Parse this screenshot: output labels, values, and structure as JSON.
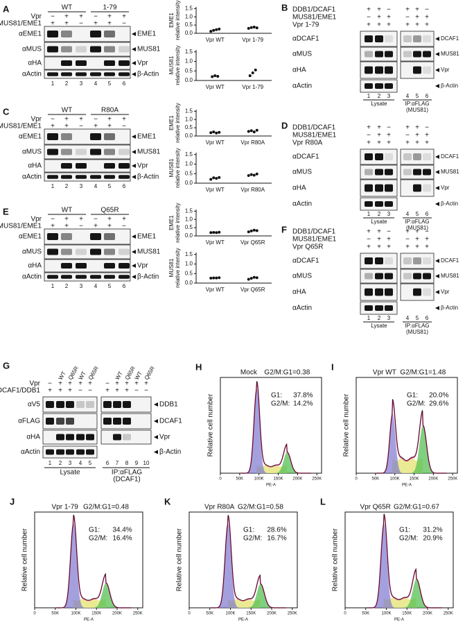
{
  "blot_panels": [
    {
      "letter": "A",
      "groups": [
        "WT",
        "1-79"
      ],
      "rows": [
        {
          "label": "Vpr",
          "signs": [
            "−",
            "+",
            "+",
            "−",
            "+",
            "+"
          ]
        },
        {
          "label": "MUS81/EME1",
          "signs": [
            "+",
            "+",
            "−",
            "+",
            "+",
            "−"
          ]
        }
      ],
      "blots": [
        {
          "antibody": "αEME1",
          "band": "EME1"
        },
        {
          "antibody": "αMUS",
          "band": "MUS81"
        },
        {
          "antibody": "αHA",
          "band": "Vpr"
        },
        {
          "antibody": "αActin",
          "band": "β-Actin"
        }
      ],
      "lanes": [
        1,
        2,
        3,
        4,
        5,
        6
      ]
    },
    {
      "letter": "C",
      "groups": [
        "WT",
        "R80A"
      ],
      "rows": [
        {
          "label": "Vpr",
          "signs": [
            "−",
            "+",
            "+",
            "−",
            "+",
            "+"
          ]
        },
        {
          "label": "MUS81/EME1",
          "signs": [
            "+",
            "+",
            "−",
            "+",
            "+",
            "−"
          ]
        }
      ],
      "blots": [
        {
          "antibody": "αEME1",
          "band": "EME1"
        },
        {
          "antibody": "αMUS",
          "band": "MUS81"
        },
        {
          "antibody": "αHA",
          "band": "Vpr"
        },
        {
          "antibody": "αActin",
          "band": "β-Actin"
        }
      ],
      "lanes": [
        1,
        2,
        3,
        4,
        5,
        6
      ]
    },
    {
      "letter": "E",
      "groups": [
        "WT",
        "Q65R"
      ],
      "rows": [
        {
          "label": "Vpr",
          "signs": [
            "−",
            "+",
            "+",
            "−",
            "+",
            "+"
          ]
        },
        {
          "label": "MUS81/EME1",
          "signs": [
            "+",
            "+",
            "−",
            "+",
            "+",
            "−"
          ]
        }
      ],
      "blots": [
        {
          "antibody": "αEME1",
          "band": "EME1"
        },
        {
          "antibody": "αMUS",
          "band": "MUS81"
        },
        {
          "antibody": "αHA",
          "band": "Vpr"
        },
        {
          "antibody": "αActin",
          "band": "β-Actin"
        }
      ],
      "lanes": [
        1,
        2,
        3,
        4,
        5,
        6
      ]
    }
  ],
  "ip_panels": [
    {
      "letter": "B",
      "rows": [
        {
          "label": "DDB1/DCAF1",
          "signs": [
            "+",
            "+",
            "−",
            "+",
            "+",
            "−"
          ]
        },
        {
          "label": "MUS81/EME1",
          "signs": [
            "−",
            "+",
            "+",
            "−",
            "+",
            "+"
          ]
        },
        {
          "label": "Vpr 1-79",
          "signs": [
            "+",
            "+",
            "+",
            "+",
            "+",
            "+"
          ]
        }
      ],
      "blots": [
        {
          "antibody": "αDCAF1",
          "band": "DCAF1"
        },
        {
          "antibody": "αMUS",
          "band": "MUS81"
        },
        {
          "antibody": "αHA",
          "band": "Vpr"
        },
        {
          "antibody": "αActin",
          "band": "β-Actin"
        }
      ],
      "lanes": [
        1,
        2,
        3,
        4,
        5,
        6
      ],
      "lysate": "Lysate",
      "ip": [
        "IP:αFLAG",
        "(MUS81)"
      ]
    },
    {
      "letter": "D",
      "rows": [
        {
          "label": "DDB1/DCAF1",
          "signs": [
            "+",
            "+",
            "−",
            "+",
            "+",
            "−"
          ]
        },
        {
          "label": "MUS81/EME1",
          "signs": [
            "−",
            "+",
            "+",
            "−",
            "+",
            "+"
          ]
        },
        {
          "label": "Vpr R80A",
          "signs": [
            "+",
            "+",
            "+",
            "+",
            "+",
            "+"
          ]
        }
      ],
      "blots": [
        {
          "antibody": "αDCAF1",
          "band": "DCAF1"
        },
        {
          "antibody": "αMUS",
          "band": "MUS81"
        },
        {
          "antibody": "αHA",
          "band": "Vpr"
        },
        {
          "antibody": "αActin",
          "band": "β-Actin"
        }
      ],
      "lanes": [
        1,
        2,
        3,
        4,
        5,
        6
      ],
      "lysate": "Lysate",
      "ip": [
        "IP:αFLAG",
        "(MUS81)"
      ]
    },
    {
      "letter": "F",
      "rows": [
        {
          "label": "DDB1/DCAF1",
          "signs": [
            "+",
            "+",
            "−",
            "+",
            "+",
            "−"
          ]
        },
        {
          "label": "MUS81/EME1",
          "signs": [
            "−",
            "+",
            "+",
            "−",
            "+",
            "+"
          ]
        },
        {
          "label": "Vpr Q65R",
          "signs": [
            "+",
            "+",
            "+",
            "+",
            "+",
            "+"
          ]
        }
      ],
      "blots": [
        {
          "antibody": "αDCAF1",
          "band": "DCAF1"
        },
        {
          "antibody": "αMUS",
          "band": "MUS81"
        },
        {
          "antibody": "αHA",
          "band": "Vpr"
        },
        {
          "antibody": "αActin",
          "band": "β-Actin"
        }
      ],
      "lanes": [
        1,
        2,
        3,
        4,
        5,
        6
      ],
      "lysate": "Lysate",
      "ip": [
        "IP:αFLAG",
        "(MUS81)"
      ]
    }
  ],
  "panel_g": {
    "letter": "G",
    "headers": [
      "WT",
      "Q65R",
      "WT",
      "Q65R",
      "WT",
      "Q65R",
      "WT",
      "Q65R"
    ],
    "rows": [
      {
        "label": "Vpr",
        "signs": [
          "−",
          "+",
          "+",
          "+",
          "+",
          "−",
          "+",
          "+",
          "+",
          "+"
        ]
      },
      {
        "label": "DCAF1/DDB1",
        "signs": [
          "+",
          "+",
          "+",
          "−",
          "−",
          "+",
          "+",
          "+",
          "−",
          "−"
        ]
      }
    ],
    "blots": [
      {
        "antibody": "αV5",
        "band": "DDB1"
      },
      {
        "antibody": "αFLAG",
        "band": "DCAF1"
      },
      {
        "antibody": "αHA",
        "band": "Vpr"
      },
      {
        "antibody": "αActin",
        "band": "β-Actin"
      }
    ],
    "lanes": [
      1,
      2,
      3,
      4,
      5,
      6,
      7,
      8,
      9,
      10
    ],
    "lysate": "Lysate",
    "ip": [
      "IP:αFLAG",
      "(DCAF1)"
    ]
  },
  "chart_data": [
    {
      "type": "dot",
      "ylabel": [
        "EME1",
        "relative intensity"
      ],
      "categories": [
        "Vpr WT",
        "Vpr 1-79"
      ],
      "values": [
        [
          0.12,
          0.18,
          0.22,
          0.26
        ],
        [
          0.3,
          0.35,
          0.38,
          0.33
        ]
      ],
      "ylim": [
        0,
        1.6
      ],
      "yticks": [
        {
          "value": 0,
          "label": "0.0"
        },
        {
          "value": 0.5,
          "label": "0.5"
        },
        {
          "value": 1,
          "label": "1.0"
        },
        {
          "value": 1.5,
          "label": "1.5"
        }
      ]
    },
    {
      "type": "dot",
      "ylabel": [
        "MUS81",
        "relative intensity"
      ],
      "categories": [
        "Vpr WT",
        "Vpr 1-79"
      ],
      "values": [
        [
          0.2,
          0.25,
          0.22
        ],
        [
          0.25,
          0.4,
          0.55
        ]
      ],
      "ylim": [
        0,
        1.6
      ],
      "yticks": [
        {
          "value": 0,
          "label": "0.0"
        },
        {
          "value": 0.5,
          "label": "0.5"
        },
        {
          "value": 1,
          "label": "1.0"
        },
        {
          "value": 1.5,
          "label": "1.5"
        }
      ]
    },
    {
      "type": "dot",
      "ylabel": [
        "EME1",
        "relative intensity"
      ],
      "categories": [
        "Vpr WT",
        "Vpr R80A"
      ],
      "values": [
        [
          0.2,
          0.25,
          0.18,
          0.22
        ],
        [
          0.28,
          0.32,
          0.25,
          0.35
        ]
      ],
      "ylim": [
        0,
        1.6
      ],
      "yticks": [
        {
          "value": 0,
          "label": "0.0"
        },
        {
          "value": 0.5,
          "label": "0.5"
        },
        {
          "value": 1,
          "label": "1.0"
        },
        {
          "value": 1.5,
          "label": "1.5"
        }
      ]
    },
    {
      "type": "dot",
      "ylabel": [
        "MUS81",
        "relative intensity"
      ],
      "categories": [
        "Vpr WT",
        "Vpr R80A"
      ],
      "values": [
        [
          0.2,
          0.28,
          0.25,
          0.3
        ],
        [
          0.4,
          0.45,
          0.42,
          0.48
        ]
      ],
      "ylim": [
        0,
        1.6
      ],
      "yticks": [
        {
          "value": 0,
          "label": "0.0"
        },
        {
          "value": 0.5,
          "label": "0.5"
        },
        {
          "value": 1,
          "label": "1.0"
        },
        {
          "value": 1.5,
          "label": "1.5"
        }
      ]
    },
    {
      "type": "dot",
      "ylabel": [
        "EME1",
        "relative intensity"
      ],
      "categories": [
        "Vpr WT",
        "Vpr Q65R"
      ],
      "values": [
        [
          0.2,
          0.21,
          0.2,
          0.22
        ],
        [
          0.25,
          0.3,
          0.35,
          0.32
        ]
      ],
      "ylim": [
        0,
        1.6
      ],
      "yticks": [
        {
          "value": 0,
          "label": "0.0"
        },
        {
          "value": 0.5,
          "label": "0.5"
        },
        {
          "value": 1,
          "label": "1.0"
        },
        {
          "value": 1.5,
          "label": "1.5"
        }
      ]
    },
    {
      "type": "dot",
      "ylabel": [
        "MUS81",
        "relative intensity"
      ],
      "categories": [
        "Vpr WT",
        "Vpr Q65R"
      ],
      "values": [
        [
          0.26,
          0.27,
          0.27,
          0.28
        ],
        [
          0.2,
          0.25,
          0.3,
          0.28
        ]
      ],
      "ylim": [
        0,
        1.6
      ],
      "yticks": [
        {
          "value": 0,
          "label": "0.0"
        },
        {
          "value": 0.5,
          "label": "0.5"
        },
        {
          "value": 1,
          "label": "1.0"
        },
        {
          "value": 1.5,
          "label": "1.5"
        }
      ]
    }
  ],
  "flow": {
    "ylabel": "Relative cell number",
    "xlabel": "PE-A",
    "xlim": [
      0,
      262144
    ],
    "xticks": [
      0,
      {
        "value": 50000,
        "label": "50K"
      },
      {
        "value": 100000,
        "label": "100K"
      },
      {
        "value": 150000,
        "label": "150K"
      },
      {
        "value": 200000,
        "label": "200K"
      },
      {
        "value": 250000,
        "label": "250K"
      }
    ],
    "panels": [
      {
        "letter": "H",
        "sample": "Mock",
        "ratio": "G2/M:G1=0.38",
        "g1": [
          "G1:",
          "37.8%"
        ],
        "g2m": [
          "G2/M:",
          "14.2%"
        ]
      },
      {
        "letter": "I",
        "sample": "Vpr WT",
        "ratio": "G2/M:G1=1.48",
        "g1": [
          "G1:",
          "20.0%"
        ],
        "g2m": [
          "G2/M:",
          "29.6%"
        ]
      },
      {
        "letter": "J",
        "sample": "Vpr 1-79",
        "ratio": "G2/M:G1=0.48",
        "g1": [
          "G1:",
          "34.4%"
        ],
        "g2m": [
          "G2/M:",
          "16.4%"
        ]
      },
      {
        "letter": "K",
        "sample": "Vpr R80A",
        "ratio": "G2/M:G1=0.58",
        "g1": [
          "G1:",
          "28.6%"
        ],
        "g2m": [
          "G2/M:",
          "16.7%"
        ]
      },
      {
        "letter": "L",
        "sample": "Vpr Q65R",
        "ratio": "G2/M:G1=0.67",
        "g1": [
          "G1:",
          "31.2%"
        ],
        "g2m": [
          "G2/M:",
          "20.9%"
        ]
      }
    ]
  }
}
